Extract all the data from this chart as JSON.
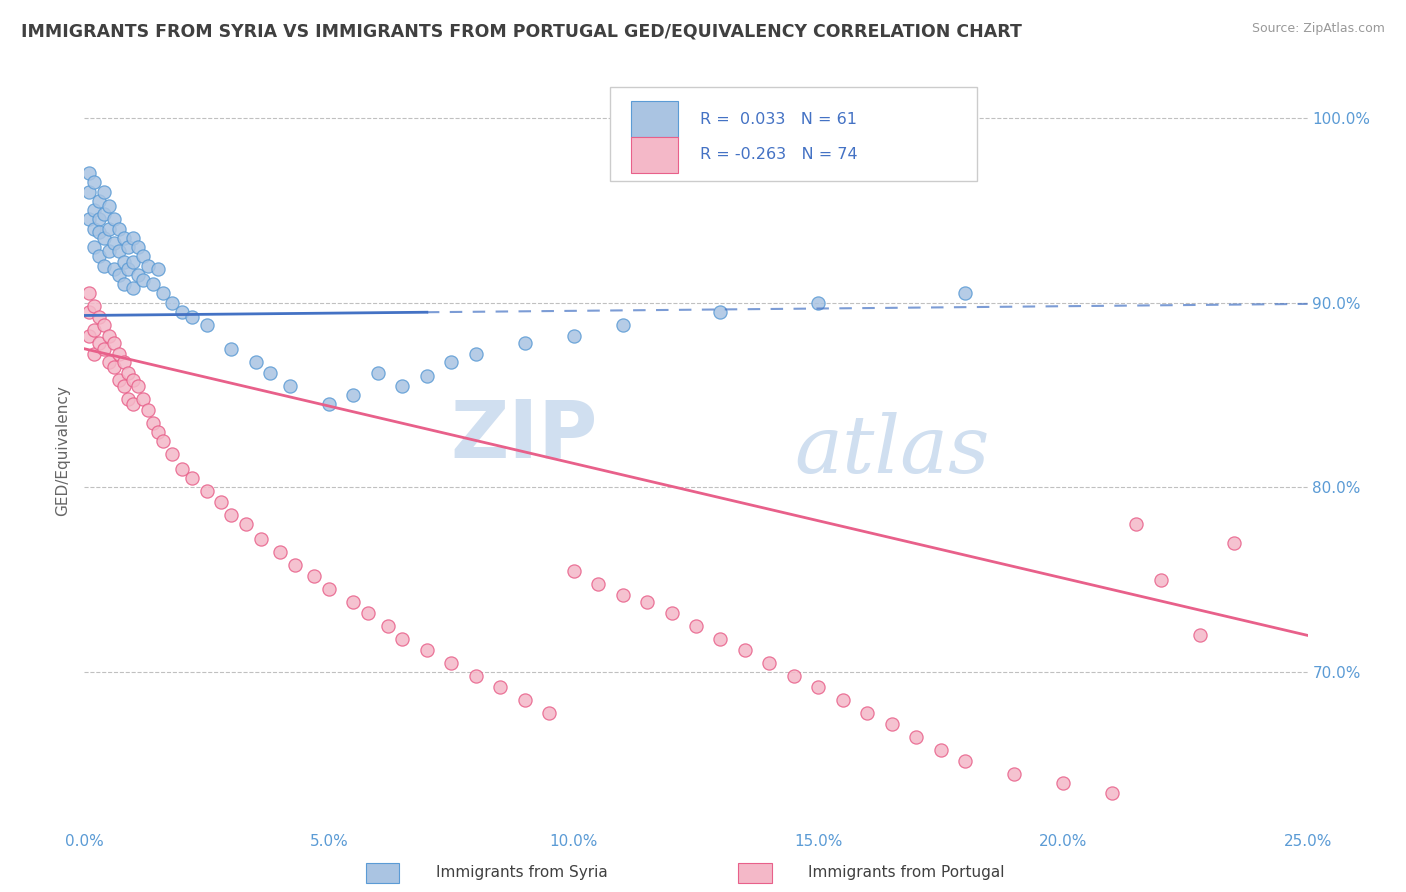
{
  "title": "IMMIGRANTS FROM SYRIA VS IMMIGRANTS FROM PORTUGAL GED/EQUIVALENCY CORRELATION CHART",
  "source_text": "Source: ZipAtlas.com",
  "ylabel": "GED/Equivalency",
  "xlim": [
    0.0,
    0.25
  ],
  "ylim": [
    0.615,
    1.025
  ],
  "yticks": [
    0.7,
    0.8,
    0.9,
    1.0
  ],
  "ytick_labels": [
    "70.0%",
    "80.0%",
    "90.0%",
    "100.0%"
  ],
  "xticks": [
    0.0,
    0.05,
    0.1,
    0.15,
    0.2,
    0.25
  ],
  "xtick_labels": [
    "0.0%",
    "5.0%",
    "10.0%",
    "15.0%",
    "20.0%",
    "25.0%"
  ],
  "syria_color": "#aac4e2",
  "syria_edge_color": "#5b9bd5",
  "portugal_color": "#f4b8c8",
  "portugal_edge_color": "#e8608a",
  "syria_line_color": "#4472c4",
  "portugal_line_color": "#e8608a",
  "grid_color": "#c0c0c0",
  "axis_color": "#5b9bd5",
  "title_color": "#404040",
  "legend_R_color": "#4472c4",
  "R_syria": 0.033,
  "N_syria": 61,
  "R_portugal": -0.263,
  "N_portugal": 74,
  "watermark_color": "#d0dff0",
  "legend_label_syria": "Immigrants from Syria",
  "legend_label_portugal": "Immigrants from Portugal",
  "syria_line_solid_end": 0.07,
  "syria_line_intercept": 0.893,
  "syria_line_slope": 0.025,
  "portugal_line_intercept": 0.875,
  "portugal_line_slope": -0.62,
  "syria_x": [
    0.001,
    0.001,
    0.001,
    0.002,
    0.002,
    0.002,
    0.002,
    0.003,
    0.003,
    0.003,
    0.003,
    0.004,
    0.004,
    0.004,
    0.004,
    0.005,
    0.005,
    0.005,
    0.006,
    0.006,
    0.006,
    0.007,
    0.007,
    0.007,
    0.008,
    0.008,
    0.008,
    0.009,
    0.009,
    0.01,
    0.01,
    0.01,
    0.011,
    0.011,
    0.012,
    0.012,
    0.013,
    0.014,
    0.015,
    0.016,
    0.018,
    0.02,
    0.022,
    0.025,
    0.03,
    0.035,
    0.038,
    0.042,
    0.05,
    0.055,
    0.06,
    0.065,
    0.07,
    0.075,
    0.08,
    0.09,
    0.1,
    0.11,
    0.13,
    0.15,
    0.18
  ],
  "syria_y": [
    0.97,
    0.96,
    0.945,
    0.965,
    0.95,
    0.94,
    0.93,
    0.955,
    0.945,
    0.938,
    0.925,
    0.96,
    0.948,
    0.935,
    0.92,
    0.952,
    0.94,
    0.928,
    0.945,
    0.932,
    0.918,
    0.94,
    0.928,
    0.915,
    0.935,
    0.922,
    0.91,
    0.93,
    0.918,
    0.935,
    0.922,
    0.908,
    0.93,
    0.915,
    0.925,
    0.912,
    0.92,
    0.91,
    0.918,
    0.905,
    0.9,
    0.895,
    0.892,
    0.888,
    0.875,
    0.868,
    0.862,
    0.855,
    0.845,
    0.85,
    0.862,
    0.855,
    0.86,
    0.868,
    0.872,
    0.878,
    0.882,
    0.888,
    0.895,
    0.9,
    0.905
  ],
  "portugal_x": [
    0.001,
    0.001,
    0.001,
    0.002,
    0.002,
    0.002,
    0.003,
    0.003,
    0.004,
    0.004,
    0.005,
    0.005,
    0.006,
    0.006,
    0.007,
    0.007,
    0.008,
    0.008,
    0.009,
    0.009,
    0.01,
    0.01,
    0.011,
    0.012,
    0.013,
    0.014,
    0.015,
    0.016,
    0.018,
    0.02,
    0.022,
    0.025,
    0.028,
    0.03,
    0.033,
    0.036,
    0.04,
    0.043,
    0.047,
    0.05,
    0.055,
    0.058,
    0.062,
    0.065,
    0.07,
    0.075,
    0.08,
    0.085,
    0.09,
    0.095,
    0.1,
    0.105,
    0.11,
    0.115,
    0.12,
    0.125,
    0.13,
    0.135,
    0.14,
    0.145,
    0.15,
    0.155,
    0.16,
    0.165,
    0.17,
    0.175,
    0.18,
    0.19,
    0.2,
    0.21,
    0.215,
    0.22,
    0.228,
    0.235
  ],
  "portugal_y": [
    0.905,
    0.895,
    0.882,
    0.898,
    0.885,
    0.872,
    0.892,
    0.878,
    0.888,
    0.875,
    0.882,
    0.868,
    0.878,
    0.865,
    0.872,
    0.858,
    0.868,
    0.855,
    0.862,
    0.848,
    0.858,
    0.845,
    0.855,
    0.848,
    0.842,
    0.835,
    0.83,
    0.825,
    0.818,
    0.81,
    0.805,
    0.798,
    0.792,
    0.785,
    0.78,
    0.772,
    0.765,
    0.758,
    0.752,
    0.745,
    0.738,
    0.732,
    0.725,
    0.718,
    0.712,
    0.705,
    0.698,
    0.692,
    0.685,
    0.678,
    0.755,
    0.748,
    0.742,
    0.738,
    0.732,
    0.725,
    0.718,
    0.712,
    0.705,
    0.698,
    0.692,
    0.685,
    0.678,
    0.672,
    0.665,
    0.658,
    0.652,
    0.645,
    0.64,
    0.635,
    0.78,
    0.75,
    0.72,
    0.77
  ]
}
